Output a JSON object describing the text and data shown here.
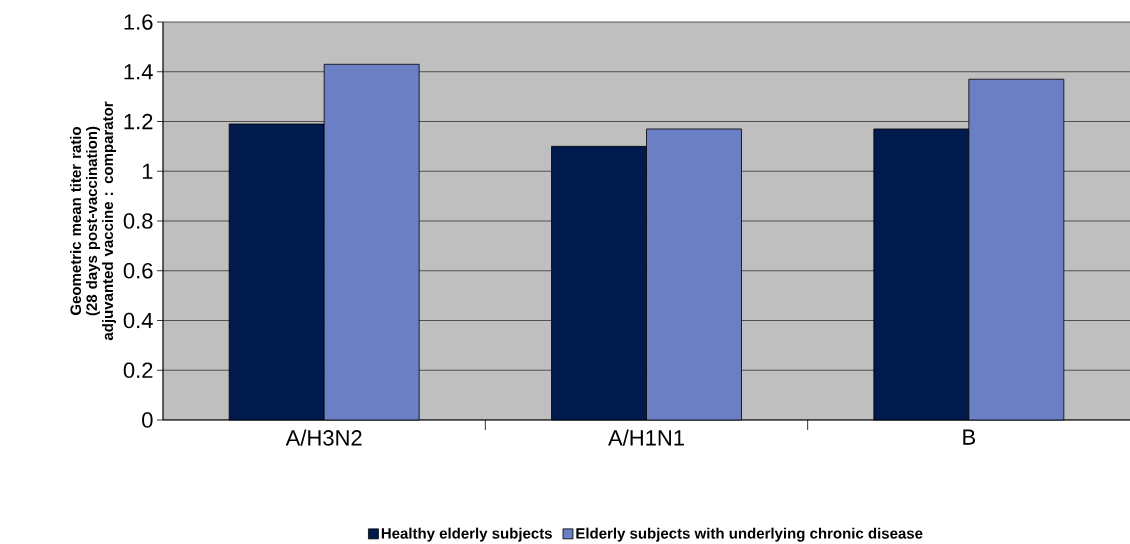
{
  "chart_data": {
    "type": "bar",
    "ylabel": "Geometric mean titer ratio (28 days post-vaccination) adjuvanted vaccine : comparator",
    "categories": [
      "A/H3N2",
      "A/H1N1",
      "B"
    ],
    "series": [
      {
        "name": "Healthy elderly subjects",
        "color": "#001a4d",
        "values": [
          1.19,
          1.1,
          1.17
        ]
      },
      {
        "name": "Elderly subjects with underlying chronic disease",
        "color": "#6b7fc4",
        "values": [
          1.43,
          1.17,
          1.37
        ]
      }
    ],
    "ylim": [
      0,
      1.6
    ],
    "yticks": [
      0,
      0.2,
      0.4,
      0.6,
      0.8,
      1,
      1.2,
      1.4,
      1.6
    ],
    "grid": "y",
    "legend": "bottom"
  }
}
